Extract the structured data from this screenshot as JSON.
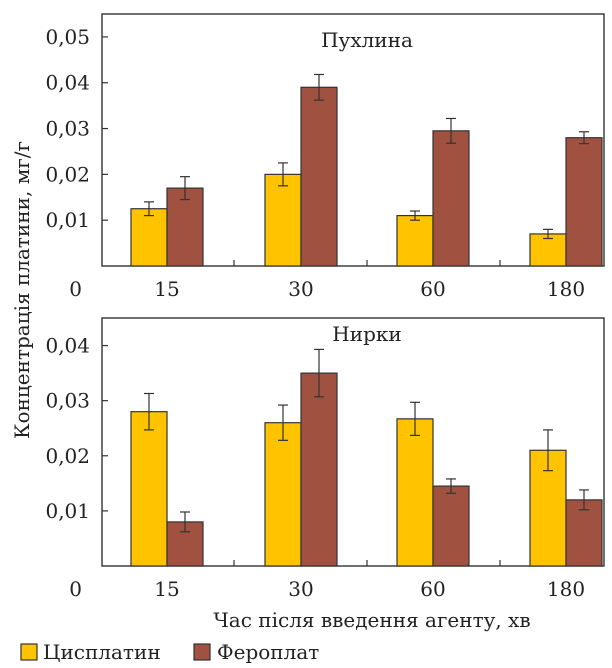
{
  "chart_data": [
    {
      "type": "bar",
      "title": "Пухлина",
      "categories": [
        "15",
        "30",
        "60",
        "180"
      ],
      "ylim": [
        0,
        0.055
      ],
      "yticks": [
        0.01,
        0.02,
        0.03,
        0.04,
        0.05
      ],
      "ytick_labels": [
        "0,01",
        "0,02",
        "0,03",
        "0,04",
        "0,05"
      ],
      "zero_label": "0",
      "series": [
        {
          "name": "Цисплатин",
          "color": "#FFC300",
          "values": [
            0.0125,
            0.02,
            0.011,
            0.007
          ],
          "errors": [
            0.0015,
            0.0025,
            0.001,
            0.001
          ]
        },
        {
          "name": "Фероплат",
          "color": "#A0513F",
          "values": [
            0.017,
            0.039,
            0.0295,
            0.028
          ],
          "errors": [
            0.0025,
            0.0028,
            0.0027,
            0.0013
          ]
        }
      ]
    },
    {
      "type": "bar",
      "title": "Нирки",
      "categories": [
        "15",
        "30",
        "60",
        "180"
      ],
      "ylim": [
        0,
        0.045
      ],
      "yticks": [
        0.01,
        0.02,
        0.03,
        0.04
      ],
      "ytick_labels": [
        "0,01",
        "0,02",
        "0,03",
        "0,04"
      ],
      "zero_label": "0",
      "series": [
        {
          "name": "Цисплатин",
          "color": "#FFC300",
          "values": [
            0.028,
            0.026,
            0.0267,
            0.021
          ],
          "errors": [
            0.0033,
            0.0032,
            0.003,
            0.0037
          ]
        },
        {
          "name": "Фероплат",
          "color": "#A0513F",
          "values": [
            0.008,
            0.035,
            0.0145,
            0.012
          ],
          "errors": [
            0.0018,
            0.0043,
            0.0013,
            0.0018
          ]
        }
      ]
    }
  ],
  "ylabel": "Концентрація платини, мг/г",
  "xlabel": "Час після введення агенту, хв",
  "legend": [
    {
      "label": "Цисплатин",
      "color": "#FFC300"
    },
    {
      "label": "Фероплат",
      "color": "#A0513F"
    }
  ],
  "legend_position": "bottom-left"
}
